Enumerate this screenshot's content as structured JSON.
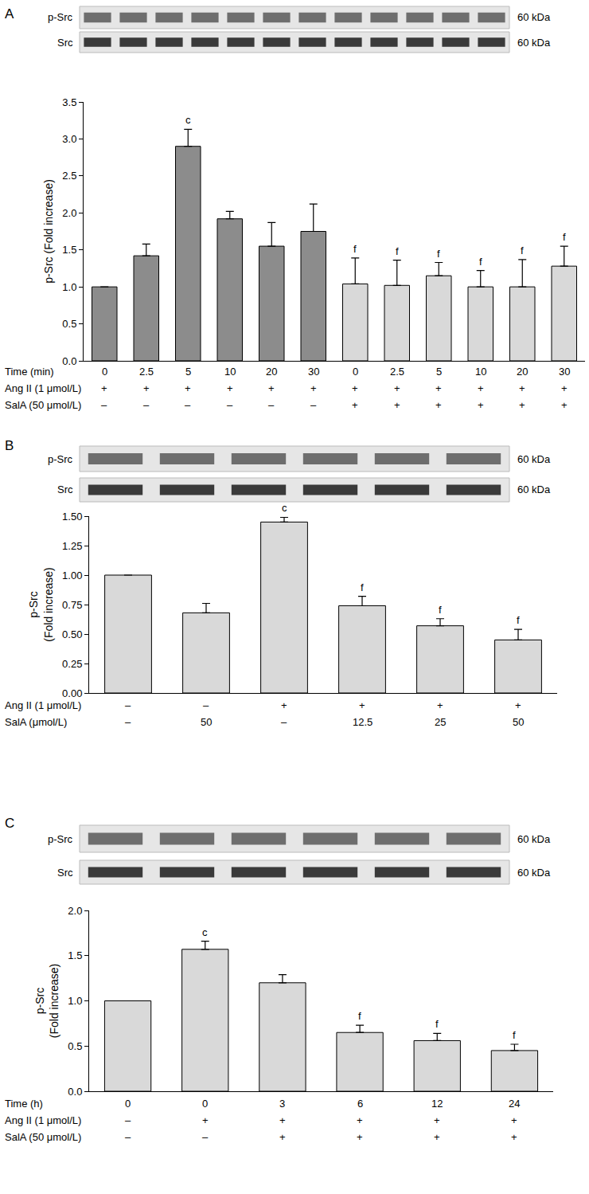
{
  "chart_data": [
    {
      "type": "bar",
      "panel": "A",
      "blots": [
        {
          "label": "p-Src",
          "size": "60 kDa"
        },
        {
          "label": "Src",
          "size": "60 kDa"
        }
      ],
      "y_label": "p-Src (Fold increase)",
      "category_label": "Time (min)",
      "categories": [
        "0",
        "2.5",
        "5",
        "10",
        "20",
        "30",
        "0",
        "2.5",
        "5",
        "10",
        "20",
        "30"
      ],
      "x_table": [
        {
          "label": "Ang II (1 μmol/L)",
          "cells": [
            "+",
            "+",
            "+",
            "+",
            "+",
            "+",
            "+",
            "+",
            "+",
            "+",
            "+",
            "+"
          ]
        },
        {
          "label": "SalA (50 μmol/L)",
          "cells": [
            "–",
            "–",
            "–",
            "–",
            "–",
            "–",
            "+",
            "+",
            "+",
            "+",
            "+",
            "+"
          ]
        }
      ],
      "values": [
        1.0,
        1.42,
        2.9,
        1.92,
        1.55,
        1.75,
        1.04,
        1.02,
        1.15,
        1.0,
        1.0,
        1.28
      ],
      "errors": [
        null,
        0.16,
        0.23,
        0.1,
        0.32,
        0.37,
        0.35,
        0.34,
        0.18,
        0.22,
        0.37,
        0.27
      ],
      "significance": [
        null,
        null,
        "c",
        null,
        null,
        null,
        "f",
        "f",
        "f",
        "f",
        "f",
        "f"
      ],
      "colors": [
        "#8c8c8c",
        "#8c8c8c",
        "#8c8c8c",
        "#8c8c8c",
        "#8c8c8c",
        "#8c8c8c",
        "#d9d9d9",
        "#d9d9d9",
        "#d9d9d9",
        "#d9d9d9",
        "#d9d9d9",
        "#d9d9d9"
      ],
      "ylim": [
        0,
        3.5
      ],
      "yticks": [
        {
          "value": 0,
          "label": "0.0"
        },
        0.5,
        {
          "value": 1,
          "label": "1.0"
        },
        1.5,
        {
          "value": 2,
          "label": "2.0"
        },
        2.5,
        {
          "value": 3,
          "label": "3.0"
        },
        3.5
      ],
      "grid": false,
      "tick_labels": "y"
    },
    {
      "type": "bar",
      "panel": "B",
      "blots": [
        {
          "label": "p-Src",
          "size": "60 kDa"
        },
        {
          "label": "Src",
          "size": "60 kDa"
        }
      ],
      "y_label": "p-Src\n(Fold increase)",
      "category_label": "Ang II (1 μmol/L)",
      "categories": [
        "–",
        "–",
        "+",
        "+",
        "+",
        "+"
      ],
      "x_table": [
        {
          "label": "SalA (μmol/L)",
          "cells": [
            "–",
            "50",
            "–",
            "12.5",
            "25",
            "50"
          ]
        }
      ],
      "values": [
        1.0,
        0.68,
        1.45,
        0.74,
        0.57,
        0.45
      ],
      "errors": [
        null,
        0.08,
        0.04,
        0.08,
        0.06,
        0.09
      ],
      "significance": [
        null,
        null,
        "c",
        "f",
        "f",
        "f"
      ],
      "color": "#d9d9d9",
      "ylim": [
        0,
        1.5
      ],
      "yticks": [
        {
          "value": 0,
          "label": "0.00"
        },
        {
          "value": 0.25,
          "label": "0.25"
        },
        {
          "value": 0.5,
          "label": "0.50"
        },
        {
          "value": 0.75,
          "label": "0.75"
        },
        {
          "value": 1,
          "label": "1.00"
        },
        {
          "value": 1.25,
          "label": "1.25"
        },
        {
          "value": 1.5,
          "label": "1.50"
        }
      ],
      "grid": false,
      "tick_labels": "y"
    },
    {
      "type": "bar",
      "panel": "C",
      "blots": [
        {
          "label": "p-Src",
          "size": "60 kDa"
        },
        {
          "label": "Src",
          "size": "60 kDa"
        }
      ],
      "y_label": "p-Src\n(Fold increase)",
      "category_label": "Time (h)",
      "categories": [
        "0",
        "0",
        "3",
        "6",
        "12",
        "24"
      ],
      "x_table": [
        {
          "label": "Ang II (1 μmol/L)",
          "cells": [
            "–",
            "+",
            "+",
            "+",
            "+",
            "+"
          ]
        },
        {
          "label": "SalA (50 μmol/L)",
          "cells": [
            "–",
            "–",
            "+",
            "+",
            "+",
            "+"
          ]
        }
      ],
      "values": [
        1.0,
        1.57,
        1.2,
        0.65,
        0.56,
        0.45
      ],
      "errors": [
        null,
        0.09,
        0.09,
        0.08,
        0.08,
        0.07
      ],
      "significance": [
        null,
        "c",
        null,
        "f",
        "f",
        "f"
      ],
      "color": "#d9d9d9",
      "ylim": [
        0,
        2
      ],
      "yticks": [
        {
          "value": 0,
          "label": "0.0"
        },
        {
          "value": 0.5,
          "label": "0.5"
        },
        {
          "value": 1,
          "label": "1.0"
        },
        {
          "value": 1.5,
          "label": "1.5"
        },
        {
          "value": 2,
          "label": "2.0"
        }
      ],
      "grid": false,
      "tick_labels": "y"
    }
  ]
}
